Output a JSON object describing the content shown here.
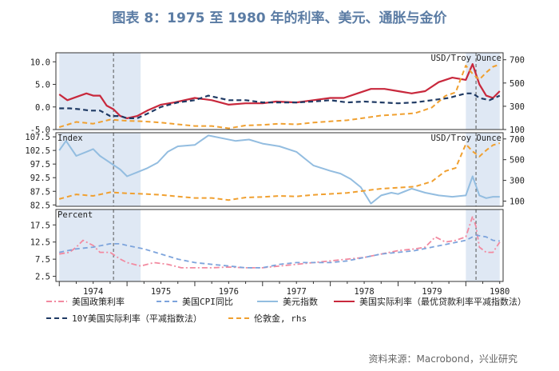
{
  "title": "图表 8：1975 至 1980 年的利率、美元、通胀与金价",
  "source": "资料来源：Macrobond，兴业研究",
  "x_tick_labels": [
    "1974",
    "1975",
    "1976",
    "1977",
    "1978",
    "1979",
    "1980"
  ],
  "colors": {
    "policy_rate": "#f28aa0",
    "cpi": "#7da4dc",
    "dollar_index": "#93bde0",
    "real_rate": "#c8283c",
    "real_10y": "#1f3a64",
    "gold": "#f0a030",
    "shade": "#dfe8f4",
    "vline": "#555555"
  },
  "legend": [
    {
      "key": "policy_rate",
      "label": "美国政策利率",
      "style": "dashdot"
    },
    {
      "key": "cpi",
      "label": "美国CPI同比",
      "style": "dashed"
    },
    {
      "key": "dollar_index",
      "label": "美元指数",
      "style": "solid"
    },
    {
      "key": "real_rate",
      "label": "美国实际利率（最优贷款利率平减指数法）",
      "style": "solid"
    },
    {
      "key": "real_10y",
      "label": "10Y美国实际利率（平减指数法）",
      "style": "dashed"
    },
    {
      "key": "gold",
      "label": "伦敦金, rhs",
      "style": "dashed"
    }
  ],
  "chart_data": [
    {
      "type": "line",
      "panel": "top",
      "right_axis_label": "USD/Troy Ounce",
      "left_ylim": [
        -5,
        12
      ],
      "left_ticks": [
        -5.0,
        0.0,
        5.0,
        10.0
      ],
      "left_tick_labels": [
        "-5.0",
        "0.0",
        "5.0",
        "10.0"
      ],
      "right_ylim": [
        100,
        760
      ],
      "right_ticks": [
        100,
        300,
        500,
        700
      ],
      "right_tick_labels": [
        "100",
        "300",
        "500",
        "700"
      ],
      "shaded_ranges": [
        [
          1974.0,
          1975.2
        ],
        [
          1980.0,
          1980.5
        ]
      ],
      "vlines": [
        1974.8,
        1980.15
      ],
      "series": [
        {
          "key": "real_rate",
          "axis": "left",
          "x": [
            1974.0,
            1974.12,
            1974.25,
            1974.4,
            1974.5,
            1974.6,
            1974.7,
            1974.8,
            1974.9,
            1975.0,
            1975.15,
            1975.3,
            1975.5,
            1975.7,
            1976.0,
            1976.25,
            1976.5,
            1976.75,
            1977.0,
            1977.2,
            1977.5,
            1977.75,
            1978.0,
            1978.2,
            1978.4,
            1978.6,
            1978.8,
            1979.0,
            1979.2,
            1979.4,
            1979.6,
            1979.8,
            1980.0,
            1980.1,
            1980.2,
            1980.3,
            1980.4,
            1980.5
          ],
          "y": [
            2.8,
            1.5,
            2.2,
            3.0,
            2.5,
            2.5,
            0.3,
            -0.5,
            -2.0,
            -2.5,
            -2.0,
            -0.8,
            0.5,
            1.0,
            2.0,
            1.5,
            0.5,
            0.8,
            0.8,
            1.2,
            1.0,
            1.5,
            2.0,
            2.0,
            3.0,
            4.0,
            4.0,
            3.5,
            3.0,
            3.5,
            5.5,
            6.5,
            6.0,
            9.5,
            5.0,
            2.5,
            2.0,
            3.5
          ]
        },
        {
          "key": "real_10y",
          "axis": "left",
          "x": [
            1974.0,
            1974.15,
            1974.3,
            1974.45,
            1974.6,
            1974.75,
            1974.9,
            1975.0,
            1975.15,
            1975.3,
            1975.5,
            1975.75,
            1976.0,
            1976.2,
            1976.5,
            1976.75,
            1977.0,
            1977.25,
            1977.5,
            1977.75,
            1978.0,
            1978.25,
            1978.5,
            1978.75,
            1979.0,
            1979.25,
            1979.5,
            1979.75,
            1980.0,
            1980.1,
            1980.2,
            1980.35,
            1980.5
          ],
          "y": [
            -0.3,
            -0.3,
            -0.5,
            -0.8,
            -0.8,
            -2.0,
            -2.0,
            -2.5,
            -2.5,
            -1.5,
            0.0,
            1.0,
            1.5,
            2.5,
            1.5,
            1.5,
            1.0,
            1.0,
            1.0,
            1.2,
            1.5,
            1.0,
            1.2,
            1.0,
            0.8,
            1.0,
            1.5,
            2.0,
            3.0,
            3.0,
            2.0,
            1.5,
            2.5
          ]
        },
        {
          "key": "gold",
          "axis": "right",
          "x": [
            1974.0,
            1974.25,
            1974.5,
            1974.75,
            1975.0,
            1975.25,
            1975.5,
            1975.75,
            1976.0,
            1976.25,
            1976.5,
            1976.75,
            1977.0,
            1977.25,
            1977.5,
            1977.75,
            1978.0,
            1978.25,
            1978.5,
            1978.75,
            1979.0,
            1979.25,
            1979.5,
            1979.7,
            1979.85,
            1980.0,
            1980.1,
            1980.2,
            1980.3,
            1980.4,
            1980.5
          ],
          "y": [
            120,
            165,
            150,
            185,
            175,
            170,
            160,
            145,
            130,
            130,
            110,
            135,
            140,
            150,
            145,
            160,
            170,
            180,
            200,
            220,
            230,
            240,
            290,
            390,
            420,
            650,
            580,
            530,
            590,
            640,
            660
          ]
        }
      ]
    },
    {
      "type": "line",
      "panel": "middle",
      "left_axis_label": "Index",
      "right_axis_label": "USD/Troy Ounce",
      "left_ylim": [
        82,
        109
      ],
      "left_ticks": [
        82.5,
        87.5,
        92.5,
        97.5,
        102.5,
        107.5
      ],
      "left_tick_labels": [
        "82.5",
        "87.5",
        "92.5",
        "97.5",
        "102.5",
        "107.5"
      ],
      "right_ylim": [
        50,
        760
      ],
      "right_ticks": [
        100,
        300,
        500,
        700
      ],
      "right_tick_labels": [
        "100",
        "300",
        "500",
        "700"
      ],
      "shaded_ranges": [
        [
          1974.0,
          1975.2
        ],
        [
          1980.0,
          1980.5
        ]
      ],
      "vlines": [
        1974.8,
        1980.15
      ],
      "series": [
        {
          "key": "dollar_index",
          "axis": "left",
          "x": [
            1974.0,
            1974.1,
            1974.25,
            1974.4,
            1974.5,
            1974.6,
            1974.75,
            1974.9,
            1975.0,
            1975.15,
            1975.3,
            1975.45,
            1975.6,
            1975.75,
            1976.0,
            1976.2,
            1976.4,
            1976.6,
            1976.8,
            1977.0,
            1977.25,
            1977.5,
            1977.75,
            1978.0,
            1978.15,
            1978.3,
            1978.45,
            1978.6,
            1978.75,
            1978.9,
            1979.0,
            1979.2,
            1979.4,
            1979.6,
            1979.8,
            1980.0,
            1980.1,
            1980.2,
            1980.3,
            1980.4,
            1980.5
          ],
          "y": [
            102.5,
            106,
            100.5,
            102,
            103,
            100.5,
            98,
            95.5,
            93,
            94.5,
            96,
            98,
            102,
            104,
            104.5,
            108,
            107,
            106,
            106.5,
            105,
            104,
            102,
            97,
            95,
            94,
            92,
            89,
            83,
            86,
            87,
            86.5,
            88.5,
            87,
            86,
            85.5,
            86,
            93,
            86,
            85,
            85.5,
            85.5
          ]
        },
        {
          "key": "gold",
          "axis": "right",
          "x": [
            1974.0,
            1974.25,
            1974.5,
            1974.75,
            1975.0,
            1975.25,
            1975.5,
            1975.75,
            1976.0,
            1976.25,
            1976.5,
            1976.75,
            1977.0,
            1977.25,
            1977.5,
            1977.75,
            1978.0,
            1978.25,
            1978.5,
            1978.75,
            1979.0,
            1979.25,
            1979.5,
            1979.7,
            1979.85,
            1980.0,
            1980.1,
            1980.2,
            1980.3,
            1980.4,
            1980.5
          ],
          "y": [
            120,
            165,
            150,
            185,
            175,
            170,
            160,
            145,
            130,
            130,
            110,
            135,
            140,
            150,
            145,
            160,
            170,
            180,
            200,
            220,
            230,
            240,
            290,
            390,
            420,
            650,
            580,
            530,
            590,
            640,
            660
          ]
        }
      ]
    },
    {
      "type": "line",
      "panel": "bottom",
      "left_axis_label": "Percent",
      "left_ylim": [
        1,
        22
      ],
      "left_ticks": [
        2.5,
        7.5,
        12.5,
        17.5
      ],
      "left_tick_labels": [
        "2.5",
        "7.5",
        "12.5",
        "17.5"
      ],
      "shaded_ranges": [
        [
          1974.0,
          1975.2
        ],
        [
          1980.0,
          1980.5
        ]
      ],
      "vlines": [
        1974.8,
        1980.15
      ],
      "series": [
        {
          "key": "policy_rate",
          "axis": "left",
          "x": [
            1974.0,
            1974.15,
            1974.25,
            1974.35,
            1974.5,
            1974.6,
            1974.75,
            1974.9,
            1975.0,
            1975.2,
            1975.4,
            1975.6,
            1975.8,
            1976.0,
            1976.25,
            1976.5,
            1976.75,
            1977.0,
            1977.25,
            1977.5,
            1977.75,
            1978.0,
            1978.25,
            1978.5,
            1978.75,
            1979.0,
            1979.25,
            1979.4,
            1979.55,
            1979.7,
            1979.85,
            1980.0,
            1980.1,
            1980.15,
            1980.2,
            1980.3,
            1980.4,
            1980.5
          ],
          "y": [
            9,
            9.5,
            11,
            13,
            11.5,
            9.5,
            9.5,
            7.5,
            6.5,
            5.5,
            6.5,
            6,
            5,
            5,
            5,
            5.2,
            5,
            5,
            5.5,
            6,
            6.5,
            7,
            7.5,
            8,
            9,
            10,
            10.5,
            11,
            14,
            12.5,
            13,
            14,
            20,
            17,
            11,
            9.5,
            9.5,
            12.5
          ]
        },
        {
          "key": "cpi",
          "axis": "left",
          "x": [
            1974.0,
            1974.25,
            1974.5,
            1974.75,
            1974.9,
            1975.0,
            1975.25,
            1975.5,
            1975.75,
            1976.0,
            1976.25,
            1976.5,
            1976.75,
            1977.0,
            1977.25,
            1977.5,
            1977.75,
            1978.0,
            1978.25,
            1978.5,
            1978.75,
            1979.0,
            1979.25,
            1979.5,
            1979.75,
            1980.0,
            1980.15,
            1980.3,
            1980.4,
            1980.5
          ],
          "y": [
            9.5,
            10.5,
            11,
            12,
            12,
            11.5,
            10.5,
            9,
            7.5,
            6.5,
            6,
            5.5,
            5,
            5,
            6,
            6.5,
            6.5,
            6.5,
            7,
            8,
            9,
            9.5,
            10,
            11,
            12,
            13,
            14.5,
            14,
            13,
            12.8
          ]
        }
      ]
    }
  ]
}
